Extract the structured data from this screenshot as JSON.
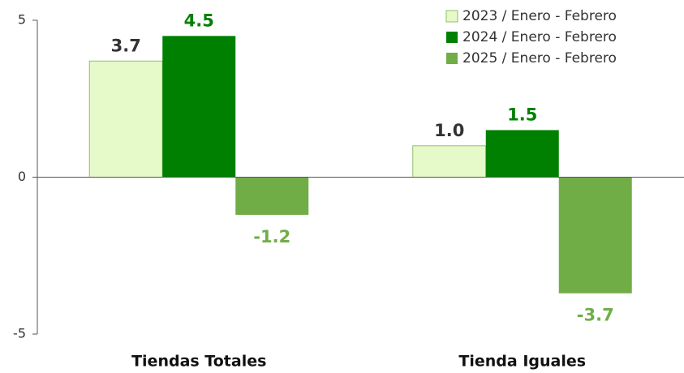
{
  "chart_data": {
    "type": "bar",
    "categories": [
      "Tiendas Totales",
      "Tienda Iguales"
    ],
    "series": [
      {
        "name": "2023 / Enero - Febrero",
        "color": "#e6f9c8",
        "values": [
          3.7,
          1.0
        ],
        "value_labels": [
          "3.7",
          "1.0"
        ]
      },
      {
        "name": "2024 / Enero - Febrero",
        "color": "#008000",
        "values": [
          4.5,
          1.5
        ],
        "value_labels": [
          "4.5",
          "1.5"
        ]
      },
      {
        "name": "2025 / Enero - Febrero",
        "color": "#70ad47",
        "values": [
          -1.2,
          -3.7
        ],
        "value_labels": [
          "-1.2",
          "-3.7"
        ]
      }
    ],
    "ylim": [
      -5,
      5
    ],
    "yticks": [
      -5,
      0,
      5
    ],
    "legend": "top-right"
  }
}
